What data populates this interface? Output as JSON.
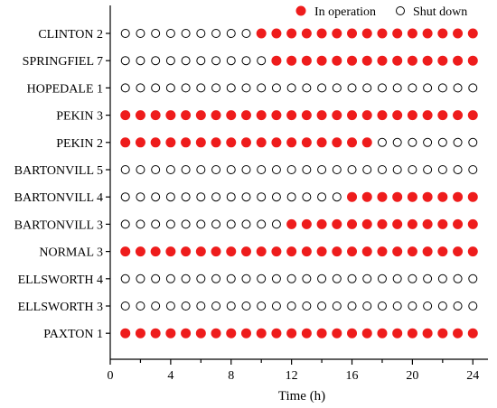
{
  "chart_data": {
    "type": "scatter",
    "title": "",
    "xlabel": "Time (h)",
    "ylabel": "",
    "xlim": [
      0,
      25
    ],
    "xticks": [
      "0",
      "4",
      "8",
      "12",
      "16",
      "20",
      "24"
    ],
    "legend": {
      "placement": "top-right",
      "entries": [
        {
          "label": "In operation",
          "style": "filled",
          "color": "#ee1c1c"
        },
        {
          "label": "Shut down",
          "style": "hollow",
          "color": "#000000"
        }
      ]
    },
    "x": [
      1,
      2,
      3,
      4,
      5,
      6,
      7,
      8,
      9,
      10,
      11,
      12,
      13,
      14,
      15,
      16,
      17,
      18,
      19,
      20,
      21,
      22,
      23,
      24
    ],
    "units": [
      {
        "name": "CLINTON 2",
        "status": [
          0,
          0,
          0,
          0,
          0,
          0,
          0,
          0,
          0,
          1,
          1,
          1,
          1,
          1,
          1,
          1,
          1,
          1,
          1,
          1,
          1,
          1,
          1,
          1
        ]
      },
      {
        "name": "SPRINGFIEL 7",
        "status": [
          0,
          0,
          0,
          0,
          0,
          0,
          0,
          0,
          0,
          0,
          1,
          1,
          1,
          1,
          1,
          1,
          1,
          1,
          1,
          1,
          1,
          1,
          1,
          1
        ]
      },
      {
        "name": "HOPEDALE 1",
        "status": [
          0,
          0,
          0,
          0,
          0,
          0,
          0,
          0,
          0,
          0,
          0,
          0,
          0,
          0,
          0,
          0,
          0,
          0,
          0,
          0,
          0,
          0,
          0,
          0
        ]
      },
      {
        "name": "PEKIN 3",
        "status": [
          1,
          1,
          1,
          1,
          1,
          1,
          1,
          1,
          1,
          1,
          1,
          1,
          1,
          1,
          1,
          1,
          1,
          1,
          1,
          1,
          1,
          1,
          1,
          1
        ]
      },
      {
        "name": "PEKIN 2",
        "status": [
          1,
          1,
          1,
          1,
          1,
          1,
          1,
          1,
          1,
          1,
          1,
          1,
          1,
          1,
          1,
          1,
          1,
          0,
          0,
          0,
          0,
          0,
          0,
          0
        ]
      },
      {
        "name": "BARTONVILL 5",
        "status": [
          0,
          0,
          0,
          0,
          0,
          0,
          0,
          0,
          0,
          0,
          0,
          0,
          0,
          0,
          0,
          0,
          0,
          0,
          0,
          0,
          0,
          0,
          0,
          0
        ]
      },
      {
        "name": "BARTONVILL 4",
        "status": [
          0,
          0,
          0,
          0,
          0,
          0,
          0,
          0,
          0,
          0,
          0,
          0,
          0,
          0,
          0,
          1,
          1,
          1,
          1,
          1,
          1,
          1,
          1,
          1
        ]
      },
      {
        "name": "BARTONVILL 3",
        "status": [
          0,
          0,
          0,
          0,
          0,
          0,
          0,
          0,
          0,
          0,
          0,
          1,
          1,
          1,
          1,
          1,
          1,
          1,
          1,
          1,
          1,
          1,
          1,
          1
        ]
      },
      {
        "name": "NORMAL 3",
        "status": [
          1,
          1,
          1,
          1,
          1,
          1,
          1,
          1,
          1,
          1,
          1,
          1,
          1,
          1,
          1,
          1,
          1,
          1,
          1,
          1,
          1,
          1,
          1,
          1
        ]
      },
      {
        "name": "ELLSWORTH 4",
        "status": [
          0,
          0,
          0,
          0,
          0,
          0,
          0,
          0,
          0,
          0,
          0,
          0,
          0,
          0,
          0,
          0,
          0,
          0,
          0,
          0,
          0,
          0,
          0,
          0
        ]
      },
      {
        "name": "ELLSWORTH 3",
        "status": [
          0,
          0,
          0,
          0,
          0,
          0,
          0,
          0,
          0,
          0,
          0,
          0,
          0,
          0,
          0,
          0,
          0,
          0,
          0,
          0,
          0,
          0,
          0,
          0
        ]
      },
      {
        "name": "PAXTON 1",
        "status": [
          1,
          1,
          1,
          1,
          1,
          1,
          1,
          1,
          1,
          1,
          1,
          1,
          1,
          1,
          1,
          1,
          1,
          1,
          1,
          1,
          1,
          1,
          1,
          1
        ]
      }
    ]
  }
}
